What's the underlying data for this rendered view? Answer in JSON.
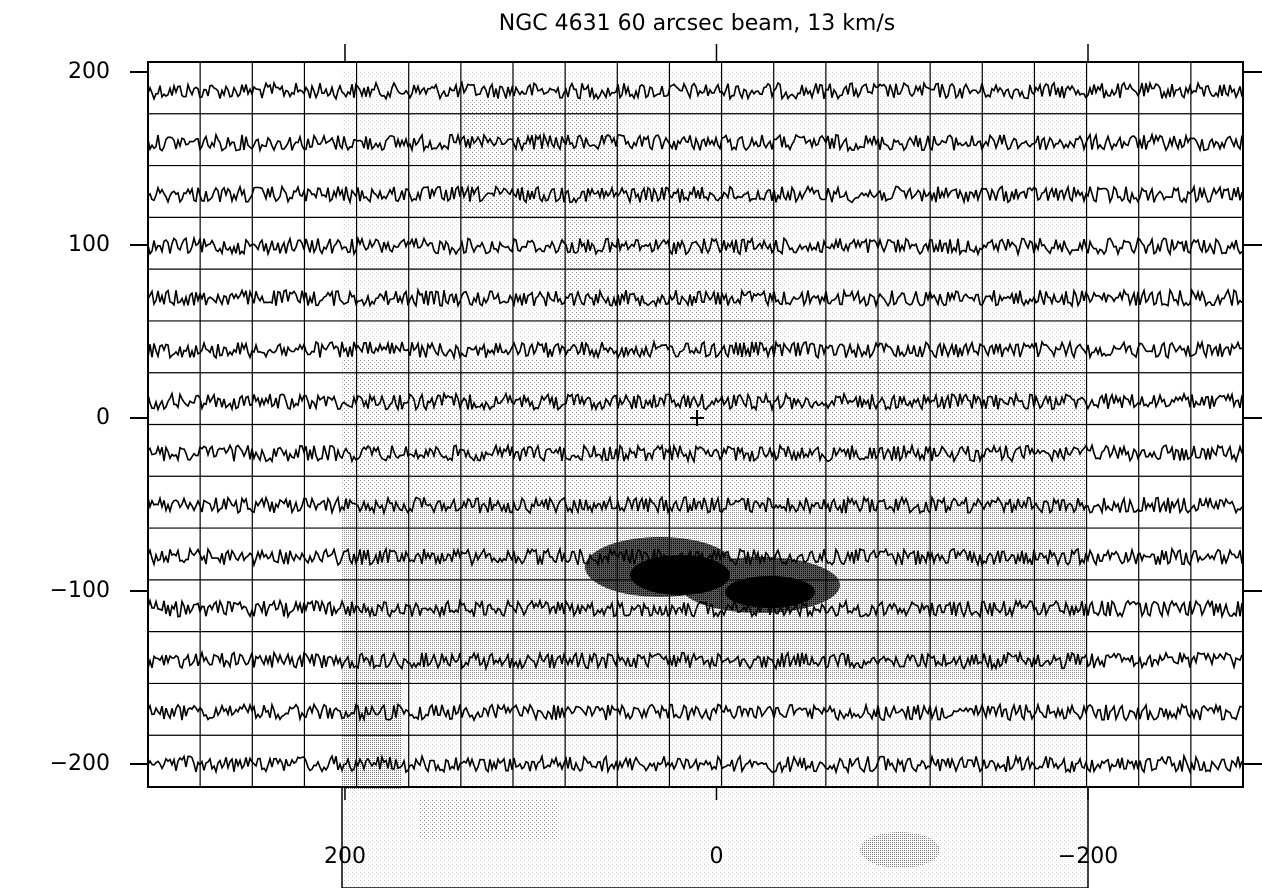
{
  "chart_data": {
    "type": "spectra-grid",
    "title": "NGC 4631 60 arcsec beam, 13 km/s",
    "ylim": [
      205.8,
      -213.3
    ],
    "yticks": [
      200,
      100,
      0,
      {
        "value": -100,
        "label": "−100"
      },
      {
        "value": -200,
        "label": "−200"
      }
    ],
    "xlim": [
      201.6,
      -200
    ],
    "xticks": [
      200,
      0,
      {
        "value": -200,
        "label": "−200"
      }
    ],
    "grid": true
  }
}
